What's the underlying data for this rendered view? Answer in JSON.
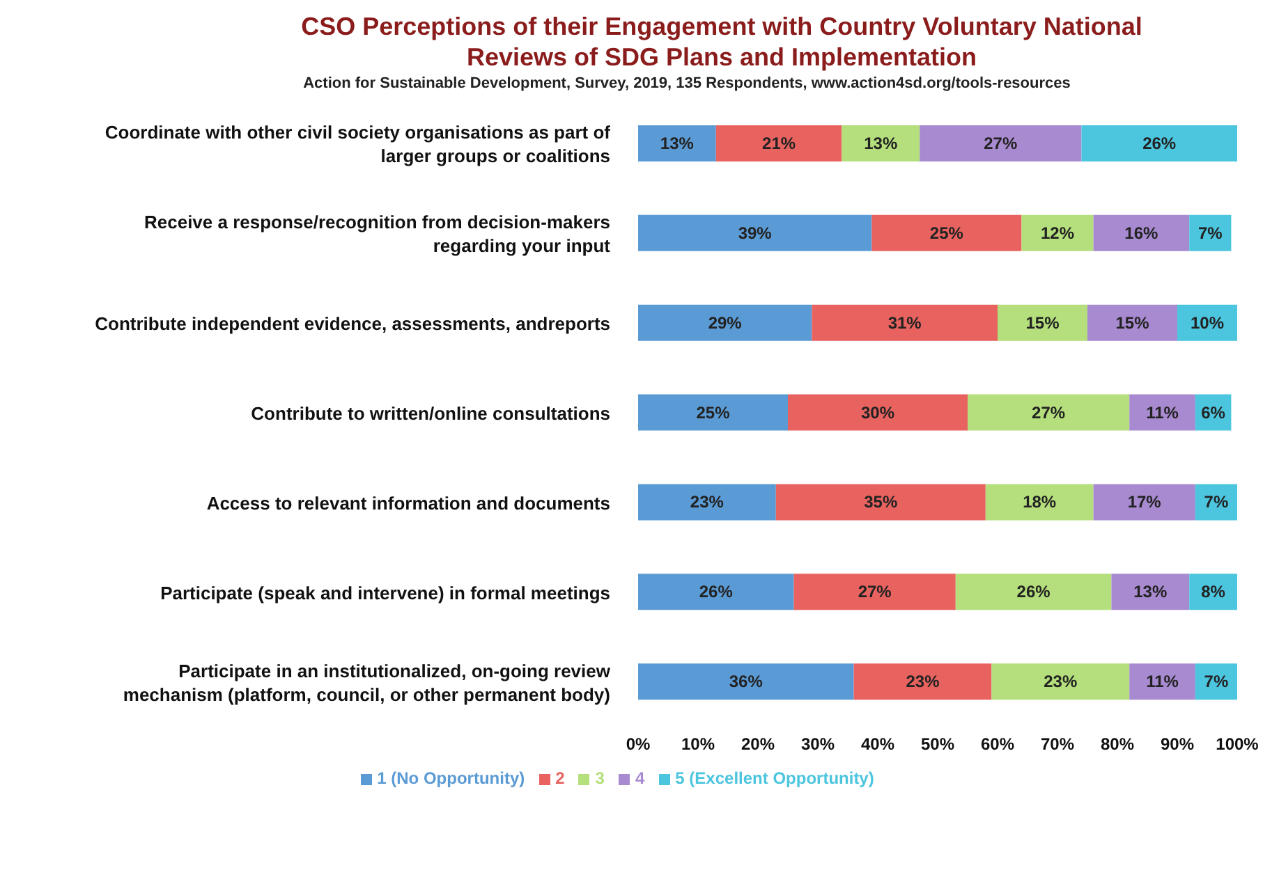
{
  "chart_data": {
    "type": "bar",
    "orientation": "horizontal",
    "stacked": true,
    "title": "CSO Perceptions of their Engagement with Country Voluntary National Reviews of SDG Plans and Implementation",
    "subtitle": "Action for Sustainable Development, Survey, 2019, 135 Respondents, www.action4sd.org/tools-resources",
    "categories": [
      "Coordinate with other civil society organisations as part of larger groups or coalitions",
      "Receive a response/recognition from decision-makers regarding your input",
      "Contribute independent evidence, assessments, andreports",
      "Contribute to written/online consultations",
      "Access to relevant information and documents",
      "Participate (speak and intervene) in formal meetings",
      "Participate in an institutionalized, on-going review mechanism (platform, council, or other permanent body)"
    ],
    "series": [
      {
        "name": "1 (No Opportunity)",
        "color": "#5b9bd5",
        "values": [
          13,
          39,
          29,
          25,
          23,
          26,
          36
        ],
        "value_labels": [
          "13%",
          "39%",
          "29%",
          "25%",
          "23%",
          "26%",
          "36%"
        ]
      },
      {
        "name": "2",
        "color": "#e8635f",
        "values": [
          21,
          25,
          31,
          30,
          35,
          27,
          23
        ],
        "value_labels": [
          "21%",
          "25%",
          "31%",
          "30%",
          "35%",
          "27%",
          "23%"
        ]
      },
      {
        "name": "3",
        "color": "#b4df7c",
        "values": [
          13,
          12,
          15,
          27,
          18,
          26,
          23
        ],
        "value_labels": [
          "13%",
          "12%",
          "15%",
          "27%",
          "18%",
          "26%",
          "23%"
        ]
      },
      {
        "name": "4",
        "color": "#a88ad0",
        "values": [
          27,
          16,
          15,
          11,
          17,
          13,
          11
        ],
        "value_labels": [
          "27%",
          "16%",
          "15%",
          "11%",
          "17%",
          "13%",
          "11%"
        ]
      },
      {
        "name": "5 (Excellent Opportunity)",
        "color": "#4cc5de",
        "values": [
          26,
          7,
          10,
          6,
          7,
          8,
          7
        ],
        "value_labels": [
          "26%",
          "7%",
          "10%",
          "6%",
          "7%",
          "8%",
          "7%"
        ]
      }
    ],
    "xlim": [
      0,
      100
    ],
    "xticks": [
      {
        "value": 0,
        "label": "0%"
      },
      {
        "value": 10,
        "label": "10%"
      },
      {
        "value": 20,
        "label": "20%"
      },
      {
        "value": 30,
        "label": "30%"
      },
      {
        "value": 40,
        "label": "40%"
      },
      {
        "value": 50,
        "label": "50%"
      },
      {
        "value": 60,
        "label": "60%"
      },
      {
        "value": 70,
        "label": "70%"
      },
      {
        "value": 80,
        "label": "80%"
      },
      {
        "value": 90,
        "label": "90%"
      },
      {
        "value": 100,
        "label": "100%"
      }
    ],
    "legend": "bottom"
  }
}
